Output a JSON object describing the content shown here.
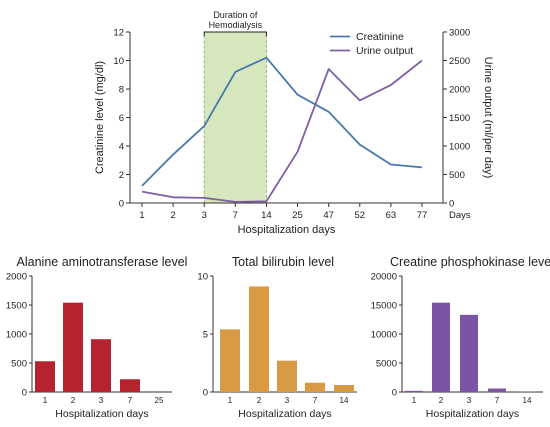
{
  "chart_data": [
    {
      "type": "line",
      "x": [
        "1",
        "2",
        "3",
        "7",
        "14",
        "25",
        "47",
        "52",
        "63",
        "77"
      ],
      "xlabel": "Hospitalization days",
      "x_unit_label": "Days",
      "ylabel": "Creatinine level (mg/dl)",
      "ylim": [
        0,
        12
      ],
      "yticks": [
        0,
        2,
        4,
        6,
        8,
        10,
        12
      ],
      "y2label": "Urine output (ml/per day)",
      "y2lim": [
        0,
        3000
      ],
      "y2ticks": [
        0,
        500,
        1000,
        1500,
        2000,
        2500,
        3000
      ],
      "legend_position": "top-right",
      "series": [
        {
          "name": "Creatinine",
          "axis": "left",
          "color": "#4a78ad",
          "values": [
            1.2,
            3.4,
            5.4,
            9.2,
            10.2,
            7.6,
            6.4,
            4.1,
            2.7,
            2.5
          ]
        },
        {
          "name": "Urine output",
          "axis": "right",
          "color": "#7e60a1",
          "values": [
            200,
            100,
            90,
            20,
            30,
            900,
            2350,
            1800,
            2070,
            2500
          ]
        }
      ],
      "annotations": [
        {
          "text_line1": "Duration of",
          "text_line2": "Hemodialysis",
          "from_x": "3",
          "to_x": "14",
          "fill": "#d6e7bd",
          "border": "#8aa85a"
        }
      ]
    },
    {
      "type": "bar",
      "title": "Alanine aminotransferase level",
      "xlabel": "Hospitalization days",
      "categories": [
        "1",
        "2",
        "3",
        "7",
        "25"
      ],
      "values": [
        530,
        1540,
        910,
        220,
        0
      ],
      "ylim": [
        0,
        2000
      ],
      "yticks": [
        0,
        500,
        1000,
        1500,
        2000
      ],
      "color": "#b5232f"
    },
    {
      "type": "bar",
      "title": "Total bilirubin level",
      "xlabel": "Hospitalization days",
      "categories": [
        "1",
        "2",
        "3",
        "7",
        "14"
      ],
      "values": [
        5.4,
        9.1,
        2.7,
        0.8,
        0.6
      ],
      "ylim": [
        0,
        10
      ],
      "yticks": [
        0,
        5,
        10
      ],
      "color": "#d99a44"
    },
    {
      "type": "bar",
      "title": "Creatine phosphokinase level",
      "xlabel": "Hospitalization days",
      "categories": [
        "1",
        "2",
        "3",
        "7",
        "14"
      ],
      "values": [
        200,
        15400,
        13300,
        600,
        50
      ],
      "ylim": [
        0,
        20000
      ],
      "yticks": [
        0,
        5000,
        10000,
        15000,
        20000
      ],
      "color": "#7b55a3"
    }
  ]
}
